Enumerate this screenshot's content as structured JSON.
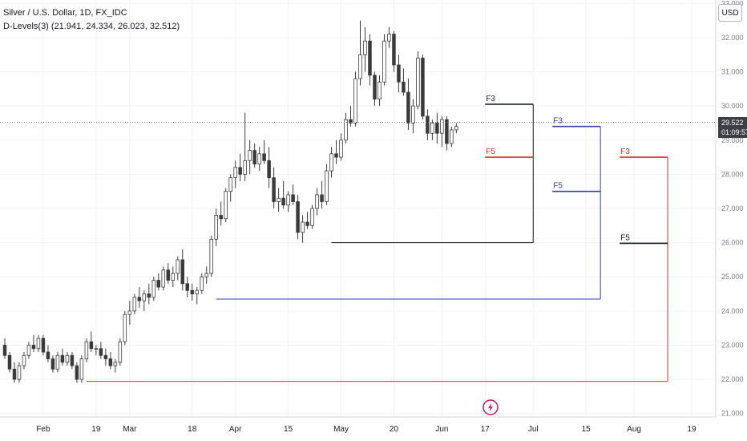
{
  "header": {
    "symbol_title": "Silver / U.S. Dollar, 1D, FX_IDC",
    "indicator_label": "D-Levels(3) (21.941, 24.334, 26.023, 32.512)"
  },
  "price_scale": {
    "currency_button": "USD",
    "last_price": "29.522",
    "countdown": "01:09:57"
  },
  "chart_data": {
    "type": "candlestick",
    "title": "Silver / U.S. Dollar, 1D, FX_IDC",
    "y_ticks": [
      "21.000",
      "22.000",
      "23.000",
      "24.000",
      "25.000",
      "26.000",
      "27.000",
      "28.000",
      "29.000",
      "30.000",
      "31.000",
      "32.000",
      "33.000"
    ],
    "ylim": [
      20.9,
      33.1
    ],
    "x_labels": [
      "Feb",
      "19",
      "Mar",
      "18",
      "Apr",
      "15",
      "May",
      "20",
      "Jun",
      "17",
      "Jul",
      "15",
      "Aug",
      "19"
    ],
    "x_label_bars": [
      8,
      19,
      26,
      39,
      48,
      59,
      70,
      81,
      91,
      100,
      110,
      121,
      131,
      143
    ],
    "xlim": [
      -1,
      148
    ],
    "candles": [
      [
        23.0,
        23.2,
        22.6,
        22.7
      ],
      [
        22.7,
        22.8,
        22.2,
        22.3
      ],
      [
        22.3,
        22.5,
        21.9,
        22.0
      ],
      [
        22.0,
        22.5,
        21.9,
        22.4
      ],
      [
        22.4,
        22.8,
        22.3,
        22.7
      ],
      [
        22.7,
        23.1,
        22.6,
        23.0
      ],
      [
        23.0,
        23.3,
        22.8,
        22.9
      ],
      [
        22.9,
        23.3,
        22.8,
        23.2
      ],
      [
        23.2,
        23.3,
        22.7,
        22.8
      ],
      [
        22.8,
        23.0,
        22.5,
        22.6
      ],
      [
        22.6,
        22.7,
        22.2,
        22.3
      ],
      [
        22.3,
        22.8,
        22.2,
        22.7
      ],
      [
        22.7,
        22.9,
        22.4,
        22.5
      ],
      [
        22.5,
        22.8,
        22.4,
        22.7
      ],
      [
        22.7,
        22.8,
        22.3,
        22.4
      ],
      [
        22.4,
        22.5,
        21.9,
        22.0
      ],
      [
        22.0,
        22.7,
        21.9,
        22.6
      ],
      [
        22.6,
        23.2,
        22.5,
        23.1
      ],
      [
        23.1,
        23.4,
        22.8,
        22.9
      ],
      [
        22.9,
        23.0,
        22.7,
        22.9
      ],
      [
        22.9,
        23.1,
        22.6,
        22.7
      ],
      [
        22.7,
        22.9,
        22.4,
        22.6
      ],
      [
        22.6,
        22.8,
        22.3,
        22.4
      ],
      [
        22.4,
        22.6,
        22.2,
        22.5
      ],
      [
        22.5,
        23.2,
        22.4,
        23.1
      ],
      [
        23.1,
        24.0,
        23.0,
        23.9
      ],
      [
        23.9,
        24.3,
        23.6,
        24.0
      ],
      [
        24.0,
        24.5,
        23.9,
        24.4
      ],
      [
        24.4,
        24.7,
        24.1,
        24.3
      ],
      [
        24.3,
        24.6,
        24.0,
        24.5
      ],
      [
        24.5,
        24.8,
        24.2,
        24.4
      ],
      [
        24.4,
        25.0,
        24.3,
        24.9
      ],
      [
        24.9,
        25.1,
        24.6,
        24.7
      ],
      [
        24.7,
        25.3,
        24.6,
        25.2
      ],
      [
        25.2,
        25.4,
        24.8,
        24.9
      ],
      [
        24.9,
        25.3,
        24.7,
        25.1
      ],
      [
        25.1,
        25.6,
        24.9,
        25.5
      ],
      [
        25.5,
        25.8,
        24.6,
        24.8
      ],
      [
        24.8,
        25.0,
        24.4,
        24.6
      ],
      [
        24.6,
        24.8,
        24.3,
        24.5
      ],
      [
        24.5,
        24.7,
        24.2,
        24.6
      ],
      [
        24.6,
        25.1,
        24.5,
        25.0
      ],
      [
        25.0,
        25.3,
        24.8,
        25.1
      ],
      [
        25.1,
        26.2,
        25.0,
        26.1
      ],
      [
        26.1,
        27.0,
        25.9,
        26.8
      ],
      [
        26.8,
        27.2,
        26.5,
        26.7
      ],
      [
        26.7,
        27.6,
        26.6,
        27.5
      ],
      [
        27.5,
        28.0,
        27.2,
        27.9
      ],
      [
        27.9,
        28.4,
        27.6,
        28.2
      ],
      [
        28.2,
        28.6,
        27.8,
        28.0
      ],
      [
        28.0,
        29.8,
        27.8,
        28.4
      ],
      [
        28.4,
        29.0,
        28.0,
        28.7
      ],
      [
        28.7,
        28.9,
        28.2,
        28.3
      ],
      [
        28.3,
        28.8,
        28.1,
        28.6
      ],
      [
        28.6,
        29.0,
        28.3,
        28.4
      ],
      [
        28.4,
        28.8,
        27.6,
        27.9
      ],
      [
        27.9,
        28.2,
        27.0,
        27.2
      ],
      [
        27.2,
        27.6,
        26.9,
        27.3
      ],
      [
        27.3,
        27.8,
        27.0,
        27.1
      ],
      [
        27.1,
        27.5,
        26.9,
        27.4
      ],
      [
        27.4,
        27.7,
        27.1,
        27.2
      ],
      [
        27.2,
        27.4,
        26.1,
        26.3
      ],
      [
        26.3,
        26.8,
        26.0,
        26.6
      ],
      [
        26.6,
        26.9,
        26.4,
        26.5
      ],
      [
        26.5,
        27.1,
        26.4,
        27.0
      ],
      [
        27.0,
        27.6,
        26.8,
        27.4
      ],
      [
        27.4,
        27.8,
        27.0,
        27.2
      ],
      [
        27.2,
        28.3,
        27.1,
        28.1
      ],
      [
        28.1,
        28.8,
        27.9,
        28.6
      ],
      [
        28.6,
        29.0,
        28.3,
        28.5
      ],
      [
        28.5,
        29.2,
        28.4,
        29.0
      ],
      [
        29.0,
        29.8,
        28.9,
        29.6
      ],
      [
        29.6,
        30.0,
        29.4,
        29.5
      ],
      [
        29.5,
        31.0,
        29.4,
        30.8
      ],
      [
        30.8,
        32.5,
        30.6,
        31.5
      ],
      [
        31.5,
        32.3,
        31.0,
        31.9
      ],
      [
        31.9,
        32.1,
        30.6,
        30.9
      ],
      [
        30.9,
        31.0,
        30.0,
        30.2
      ],
      [
        30.2,
        30.9,
        30.0,
        30.7
      ],
      [
        30.7,
        32.1,
        30.6,
        31.9
      ],
      [
        31.9,
        32.3,
        31.7,
        32.1
      ],
      [
        32.1,
        32.2,
        31.0,
        31.2
      ],
      [
        31.2,
        31.5,
        30.4,
        30.7
      ],
      [
        30.7,
        31.1,
        30.3,
        30.4
      ],
      [
        30.4,
        30.8,
        29.3,
        29.5
      ],
      [
        29.5,
        30.2,
        29.2,
        30.0
      ],
      [
        30.0,
        31.6,
        29.9,
        31.4
      ],
      [
        31.4,
        31.5,
        29.6,
        29.7
      ],
      [
        29.7,
        29.9,
        29.0,
        29.2
      ],
      [
        29.2,
        29.6,
        29.0,
        29.5
      ],
      [
        29.5,
        29.8,
        28.9,
        29.2
      ],
      [
        29.2,
        29.7,
        28.8,
        29.6
      ],
      [
        29.6,
        29.7,
        28.7,
        28.9
      ],
      [
        28.9,
        29.4,
        28.8,
        29.3
      ],
      [
        29.3,
        29.5,
        29.2,
        29.4
      ]
    ],
    "levels": [
      {
        "name": "F3",
        "color": "#131722",
        "value": 30.05,
        "label_bar": 100,
        "end_bar": 110,
        "connector_value": 26.0,
        "connector_start_bar": 68
      },
      {
        "name": "F5",
        "color": "#d32f2f",
        "value": 28.5,
        "label_bar": 100,
        "end_bar": 110
      },
      {
        "name": "F3",
        "color": "#2f3fa8",
        "value": 29.4,
        "label_bar": 114,
        "end_bar": 124,
        "connector_value": 24.35,
        "connector_start_bar": 44
      },
      {
        "name": "F5",
        "color": "#2f3fa8",
        "value": 27.5,
        "label_bar": 114,
        "end_bar": 124
      },
      {
        "name": "F3",
        "color": "#d32f2f",
        "value": 28.5,
        "label_bar": 128,
        "end_bar": 138,
        "connector_value": 21.94,
        "connector_start_bar": 17
      },
      {
        "name": "F5",
        "color": "#131722",
        "value": 25.98,
        "label_bar": 128,
        "end_bar": 138
      }
    ],
    "last_price": 29.522,
    "legend": "none",
    "grid": true
  },
  "colors": {
    "up_candle": "#ffffff",
    "down_candle": "#3b3b3b",
    "wick": "#3b3b3b",
    "grid": "#f0f3fa",
    "axis_text": "#787b86",
    "badge_bg": "#3d3f45",
    "lightning": "#c2185b"
  },
  "icons": {
    "event_marker": "lightning-icon"
  }
}
